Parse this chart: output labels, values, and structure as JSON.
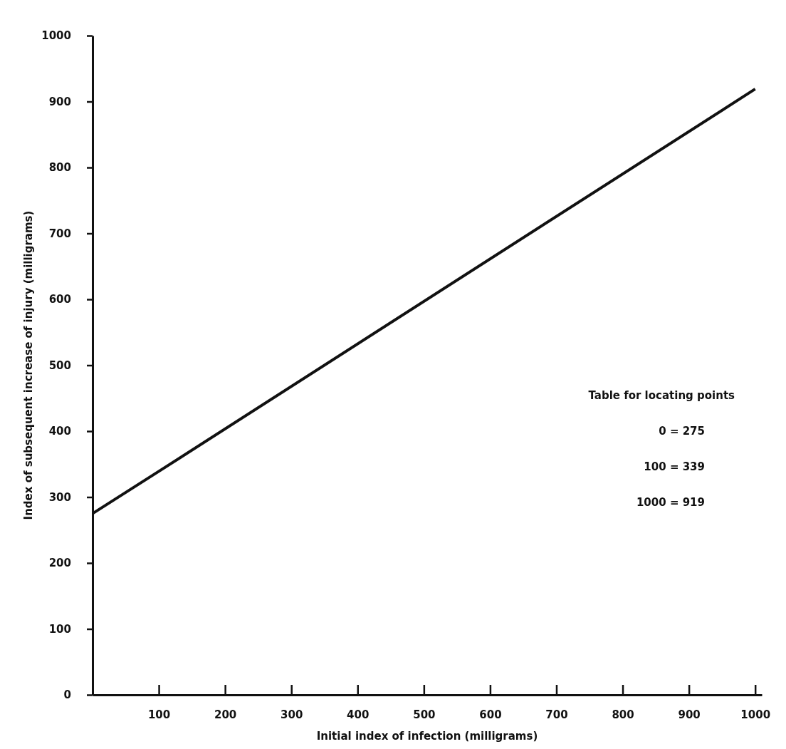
{
  "chart_data": {
    "type": "line",
    "xlabel": "Initial index of infection (milligrams)",
    "ylabel": "Index of subsequent increase of injury (milligrams)",
    "x": [
      0,
      100,
      1000
    ],
    "series": [
      {
        "color": "#111111",
        "values": [
          275,
          339,
          919
        ]
      }
    ],
    "xlim": [
      0,
      1010
    ],
    "ylim": [
      0,
      1000
    ],
    "xticks": [
      100,
      200,
      300,
      400,
      500,
      600,
      700,
      800,
      900,
      1000
    ],
    "yticks": [
      0,
      100,
      200,
      300,
      400,
      500,
      600,
      700,
      800,
      900,
      1000
    ],
    "marker": "none",
    "line_style": "solid",
    "annotations": [
      "Table for locating points",
      "0 = 275",
      "100 = 339",
      "1000 = 919"
    ]
  }
}
